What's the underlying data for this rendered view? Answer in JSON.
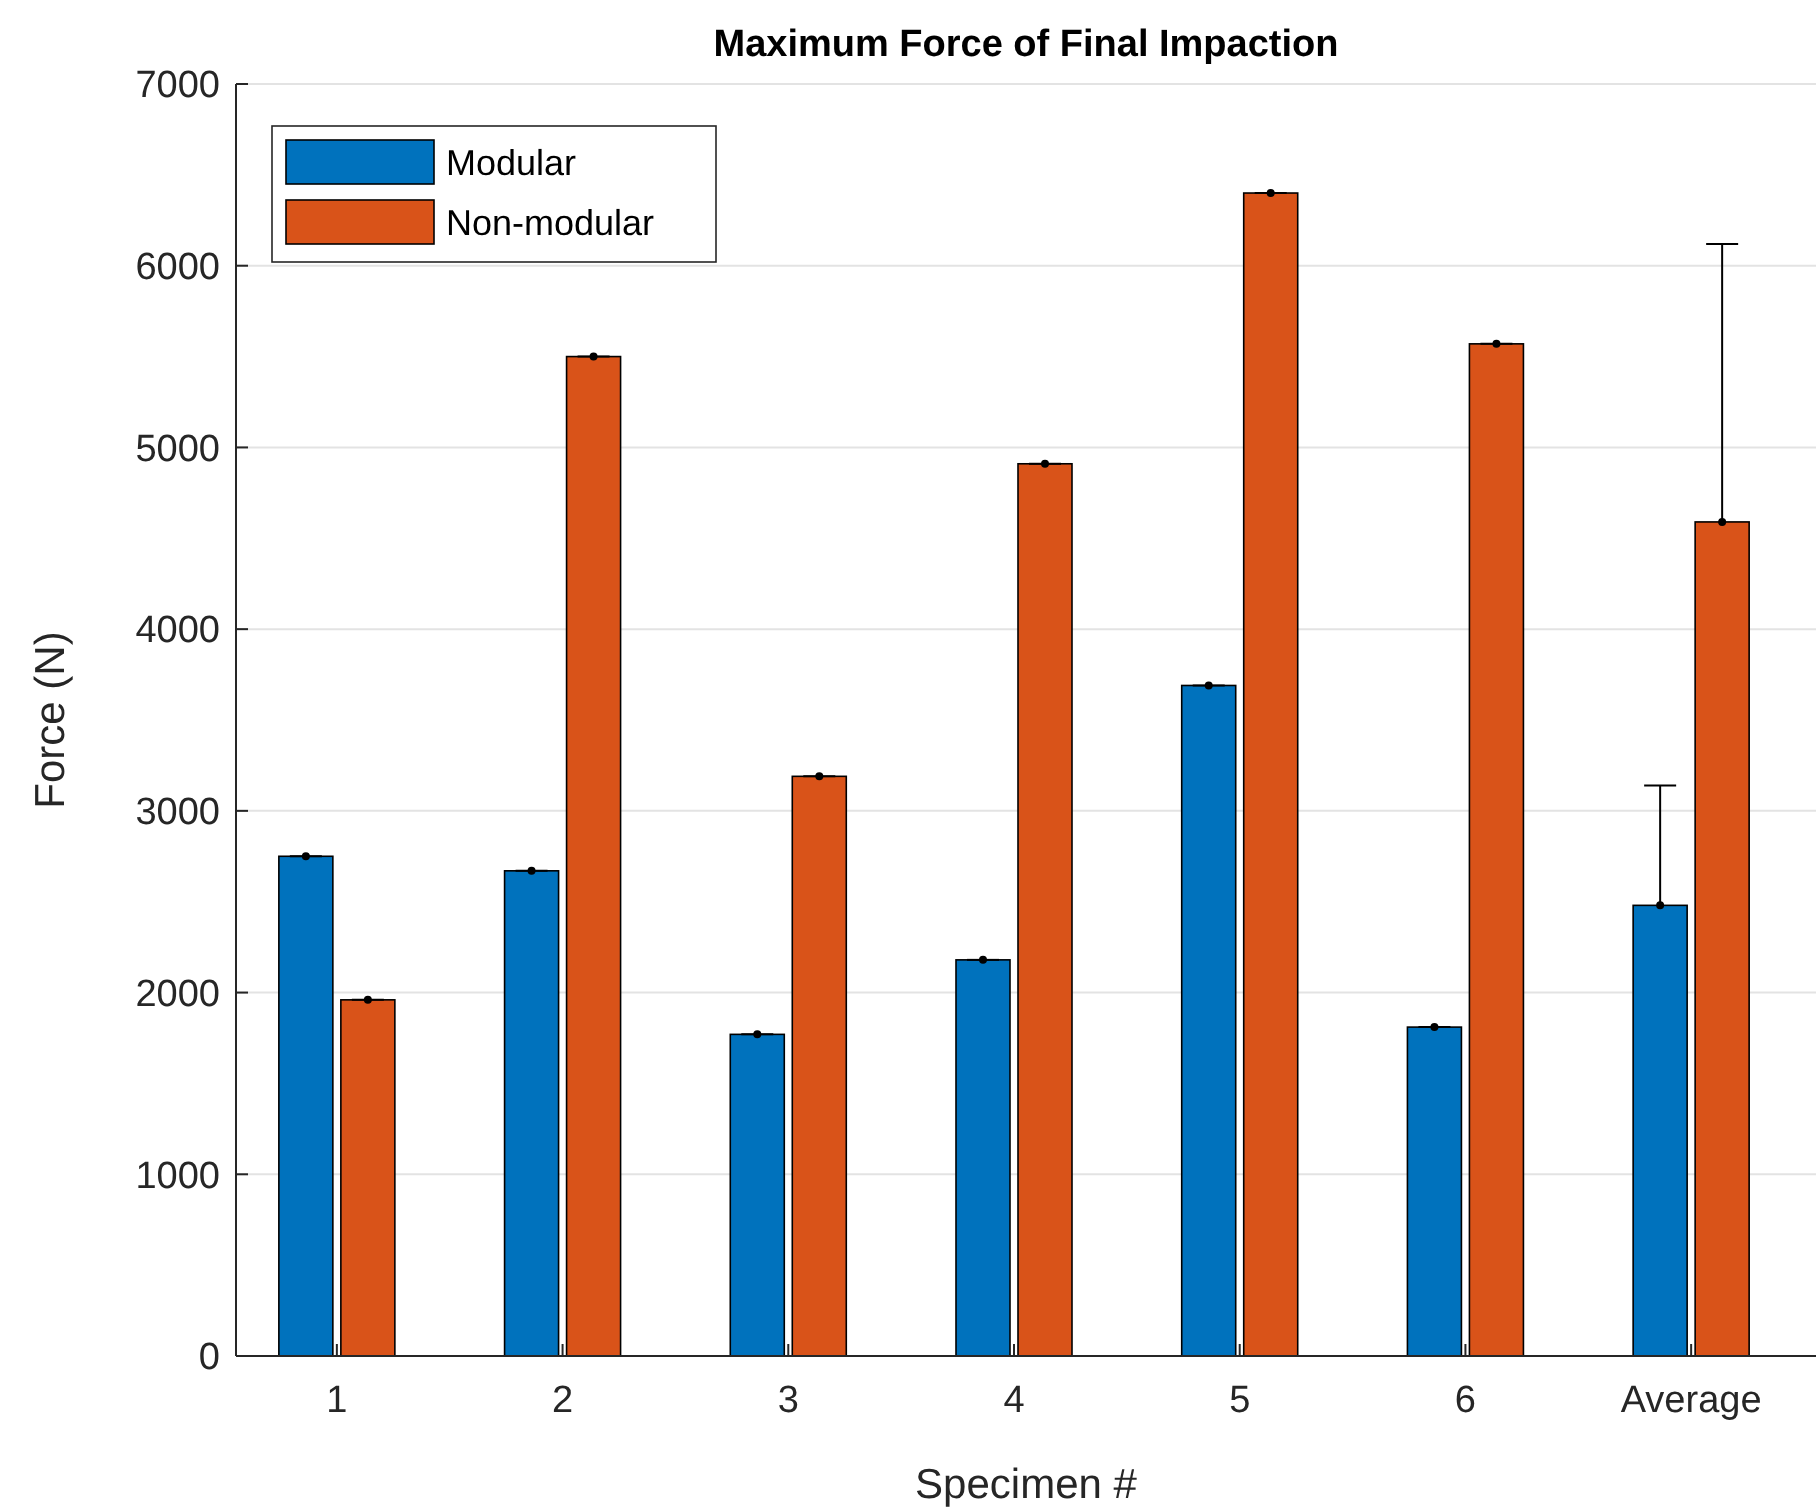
{
  "chart_data": {
    "type": "bar",
    "title": "Maximum Force of Final Impaction",
    "xlabel": "Specimen #",
    "ylabel": "Force (N)",
    "categories": [
      "1",
      "2",
      "3",
      "4",
      "5",
      "6",
      "Average"
    ],
    "series": [
      {
        "name": "Modular",
        "color": "#0072bd",
        "values": [
          2750,
          2670,
          1770,
          2180,
          3690,
          1810,
          2480
        ],
        "errors": [
          0,
          0,
          0,
          0,
          0,
          0,
          [
            2480,
            3140
          ]
        ]
      },
      {
        "name": "Non-modular",
        "color": "#d95319",
        "values": [
          1960,
          5500,
          3190,
          4910,
          6400,
          5570,
          4590
        ],
        "errors": [
          0,
          0,
          0,
          0,
          0,
          0,
          [
            4590,
            6120
          ]
        ]
      }
    ],
    "ylim": [
      0,
      7000
    ],
    "yticks": [
      0,
      1000,
      2000,
      3000,
      4000,
      5000,
      6000,
      7000
    ],
    "grid": "y",
    "legend": "top left"
  }
}
